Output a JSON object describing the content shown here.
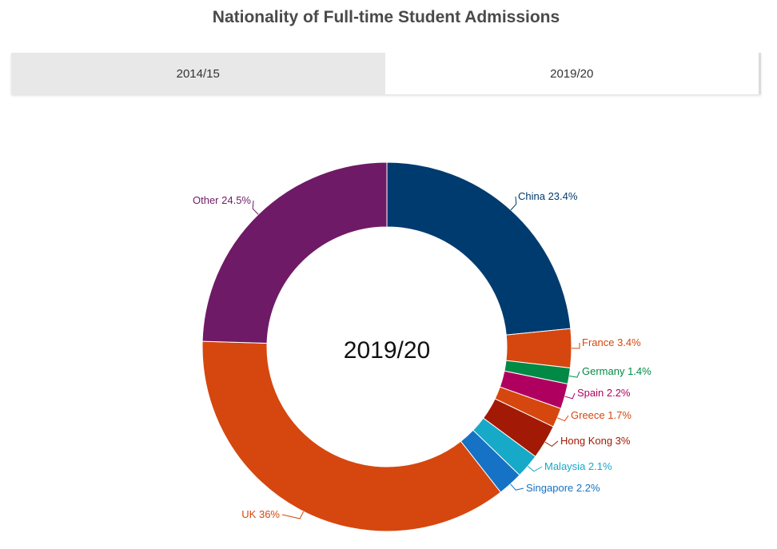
{
  "title": "Nationality of Full-time Student Admissions",
  "tabs": [
    {
      "label": "2014/15",
      "active": false
    },
    {
      "label": "2019/20",
      "active": true
    }
  ],
  "chart_data": {
    "type": "pie",
    "variant": "donut",
    "title": "Nationality of Full-time Student Admissions",
    "center_label": "2019/20",
    "slices": [
      {
        "label": "China",
        "value": 23.4,
        "display": "China 23.4%",
        "color": "#003b6f"
      },
      {
        "label": "France",
        "value": 3.4,
        "display": "France 3.4%",
        "color": "#d5470f"
      },
      {
        "label": "Germany",
        "value": 1.4,
        "display": "Germany 1.4%",
        "color": "#008a45"
      },
      {
        "label": "Spain",
        "value": 2.2,
        "display": "Spain 2.2%",
        "color": "#b0005f"
      },
      {
        "label": "Greece",
        "value": 1.7,
        "display": "Greece 1.7%",
        "color": "#d5470f"
      },
      {
        "label": "Hong Kong",
        "value": 3.0,
        "display": "Hong Kong 3%",
        "color": "#a21a05"
      },
      {
        "label": "Malaysia",
        "value": 2.1,
        "display": "Malaysia 2.1%",
        "color": "#17a9c8"
      },
      {
        "label": "Singapore",
        "value": 2.2,
        "display": "Singapore 2.2%",
        "color": "#1572c4"
      },
      {
        "label": "UK",
        "value": 36.0,
        "display": "UK 36%",
        "color": "#d5470f"
      },
      {
        "label": "Other",
        "value": 24.5,
        "display": "Other 24.5%",
        "color": "#6f1a66"
      }
    ]
  }
}
